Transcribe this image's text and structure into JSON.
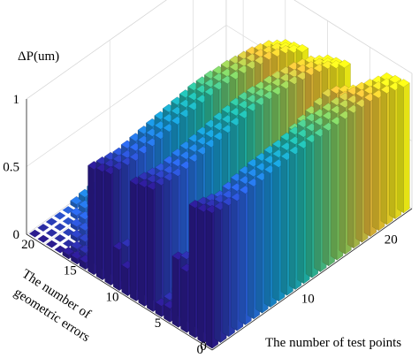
{
  "chart_data": {
    "type": "bar3d",
    "zlabel": "ΔP(um)",
    "xlabel": "The number of  test points",
    "ylabel_lines": [
      "The number of",
      "geometric errors"
    ],
    "x_range": [
      0,
      24
    ],
    "y_range": [
      0,
      22
    ],
    "z_range": [
      0,
      1
    ],
    "x_ticks": [
      "0",
      "10",
      "20"
    ],
    "x_tick_values": [
      0,
      10,
      20
    ],
    "y_ticks": [
      "0",
      "5",
      "10",
      "15",
      "20"
    ],
    "y_tick_values": [
      0,
      5,
      10,
      15,
      20
    ],
    "z_ticks": [
      "0",
      "0.5",
      "1"
    ],
    "z_tick_values": [
      0,
      0.5,
      1
    ],
    "grid": true,
    "colormap": [
      "#2b1b8f",
      "#2a5fdc",
      "#1696d1",
      "#21b9a4",
      "#84c95a",
      "#e8ba36",
      "#f9f716"
    ],
    "x_count": 24,
    "y_count": 22,
    "row_profiles": [
      {
        "y": 1,
        "values": [
          1.0,
          0.98,
          0.97,
          0.96,
          0.97,
          0.98,
          0.98,
          0.99,
          0.99,
          1.0,
          1.0,
          1.0,
          1.0,
          1.0,
          1.0,
          1.0,
          1.0,
          1.0,
          1.0,
          1.0,
          0.98,
          0.97,
          0.95,
          0.93
        ]
      },
      {
        "y": 2,
        "values": [
          0.97,
          0.96,
          0.95,
          0.94,
          0.95,
          0.96,
          0.97,
          0.97,
          0.98,
          0.98,
          0.99,
          0.99,
          1.0,
          1.0,
          1.0,
          1.0,
          1.0,
          1.0,
          0.99,
          0.99,
          0.97,
          0.96,
          0.94,
          0.92
        ]
      },
      {
        "y": 3,
        "values": [
          0.96,
          0.94,
          0.92,
          0.9,
          0.92,
          0.94,
          0.95,
          0.96,
          0.96,
          0.97,
          0.97,
          0.98,
          0.98,
          0.99,
          0.99,
          0.98,
          0.98,
          0.98,
          0.97,
          0.97,
          0.96,
          0.94,
          0.92,
          0.9
        ]
      },
      {
        "y": 4,
        "values": [
          0.45,
          0.42,
          0.4,
          0.38,
          0.4,
          0.44,
          0.5,
          0.55,
          0.58,
          0.62,
          0.65,
          0.68,
          0.72,
          0.75,
          0.8,
          0.82,
          0.85,
          0.87,
          0.88,
          0.9,
          0.86,
          0.8,
          0.72,
          0.62
        ]
      },
      {
        "y": 5,
        "values": [
          0.5,
          0.46,
          0.42,
          0.4,
          0.42,
          0.46,
          0.52,
          0.56,
          0.6,
          0.64,
          0.68,
          0.72,
          0.76,
          0.8,
          0.84,
          0.86,
          0.88,
          0.9,
          0.92,
          0.9,
          0.86,
          0.82,
          0.76,
          0.68
        ]
      },
      {
        "y": 6,
        "values": [
          0.1,
          0.1,
          0.12,
          0.14,
          0.18,
          0.22,
          0.28,
          0.34,
          0.4,
          0.46,
          0.52,
          0.56,
          0.6,
          0.64,
          0.68,
          0.72,
          0.74,
          0.76,
          0.78,
          0.78,
          0.74,
          0.66,
          0.56,
          0.42
        ]
      },
      {
        "y": 7,
        "values": [
          0.08,
          0.08,
          0.1,
          0.12,
          0.14,
          0.18,
          0.22,
          0.26,
          0.3,
          0.34,
          0.38,
          0.42,
          0.46,
          0.5,
          0.54,
          0.58,
          0.6,
          0.62,
          0.64,
          0.64,
          0.6,
          0.54,
          0.46,
          0.36
        ]
      },
      {
        "y": 8,
        "values": [
          0.9,
          0.89,
          0.88,
          0.87,
          0.88,
          0.89,
          0.9,
          0.91,
          0.92,
          0.93,
          0.94,
          0.95,
          0.96,
          0.96,
          0.96,
          0.95,
          0.95,
          0.94,
          0.93,
          0.92,
          0.9,
          0.88,
          0.84,
          0.8
        ]
      },
      {
        "y": 9,
        "values": [
          0.88,
          0.87,
          0.86,
          0.85,
          0.86,
          0.87,
          0.88,
          0.89,
          0.9,
          0.91,
          0.92,
          0.93,
          0.94,
          0.94,
          0.94,
          0.93,
          0.93,
          0.92,
          0.91,
          0.9,
          0.88,
          0.86,
          0.82,
          0.78
        ]
      },
      {
        "y": 10,
        "values": [
          0.86,
          0.85,
          0.84,
          0.83,
          0.84,
          0.85,
          0.86,
          0.87,
          0.88,
          0.89,
          0.9,
          0.91,
          0.92,
          0.92,
          0.92,
          0.91,
          0.91,
          0.9,
          0.89,
          0.88,
          0.86,
          0.84,
          0.8,
          0.76
        ]
      },
      {
        "y": 11,
        "values": [
          0.2,
          0.18,
          0.16,
          0.14,
          0.16,
          0.2,
          0.24,
          0.28,
          0.32,
          0.36,
          0.4,
          0.44,
          0.48,
          0.52,
          0.56,
          0.6,
          0.62,
          0.64,
          0.66,
          0.66,
          0.62,
          0.56,
          0.48,
          0.38
        ]
      },
      {
        "y": 12,
        "values": [
          0.3,
          0.28,
          0.26,
          0.24,
          0.26,
          0.3,
          0.34,
          0.38,
          0.42,
          0.46,
          0.5,
          0.54,
          0.58,
          0.62,
          0.66,
          0.68,
          0.7,
          0.72,
          0.74,
          0.74,
          0.7,
          0.64,
          0.56,
          0.44
        ]
      },
      {
        "y": 13,
        "values": [
          0.82,
          0.81,
          0.8,
          0.79,
          0.8,
          0.81,
          0.82,
          0.83,
          0.84,
          0.85,
          0.86,
          0.87,
          0.88,
          0.88,
          0.88,
          0.87,
          0.87,
          0.86,
          0.85,
          0.84,
          0.82,
          0.8,
          0.76,
          0.72
        ]
      },
      {
        "y": 14,
        "values": [
          0.8,
          0.79,
          0.78,
          0.77,
          0.78,
          0.79,
          0.8,
          0.81,
          0.82,
          0.83,
          0.84,
          0.85,
          0.86,
          0.86,
          0.86,
          0.85,
          0.85,
          0.84,
          0.83,
          0.82,
          0.8,
          0.78,
          0.74,
          0.7
        ]
      },
      {
        "y": 15,
        "values": [
          0.78,
          0.77,
          0.76,
          0.75,
          0.76,
          0.77,
          0.78,
          0.79,
          0.8,
          0.81,
          0.82,
          0.83,
          0.84,
          0.84,
          0.84,
          0.83,
          0.83,
          0.82,
          0.81,
          0.8,
          0.78,
          0.76,
          0.72,
          0.68
        ]
      },
      {
        "y": 16,
        "values": [
          0.05,
          0.05,
          0.06,
          0.08,
          0.1,
          0.14,
          0.18,
          0.22,
          0.26,
          0.3,
          0.34,
          0.38,
          0.4,
          0.42,
          0.44,
          0.46,
          0.46,
          0.46,
          0.44,
          0.42,
          0.36,
          0.28,
          0.2,
          0.12
        ]
      },
      {
        "y": 17,
        "values": [
          0.04,
          0.04,
          0.05,
          0.06,
          0.08,
          0.1,
          0.14,
          0.18,
          0.22,
          0.26,
          0.3,
          0.34,
          0.36,
          0.38,
          0.4,
          0.42,
          0.42,
          0.4,
          0.38,
          0.34,
          0.28,
          0.22,
          0.16,
          0.1
        ]
      },
      {
        "y": 18,
        "values": [
          0.03,
          0.03,
          0.04,
          0.05,
          0.06,
          0.08,
          0.12,
          0.16,
          0.2,
          0.24,
          0.28,
          0.32,
          0.34,
          0.36,
          0.38,
          0.38,
          0.36,
          0.34,
          0.32,
          0.28,
          0.22,
          0.16,
          0.12,
          0.08
        ]
      },
      {
        "y": 19,
        "values": [
          0.02,
          0.02,
          0.03,
          0.04,
          0.05,
          0.06,
          0.08,
          0.12,
          0.16,
          0.2,
          0.24,
          0.28,
          0.3,
          0.32,
          0.34,
          0.34,
          0.32,
          0.3,
          0.28,
          0.24,
          0.18,
          0.12,
          0.08,
          0.05
        ]
      },
      {
        "y": 20,
        "values": [
          0.02,
          0.02,
          0.02,
          0.03,
          0.04,
          0.05,
          0.06,
          0.08,
          0.1,
          0.14,
          0.18,
          0.2,
          0.22,
          0.24,
          0.24,
          0.24,
          0.22,
          0.2,
          0.18,
          0.14,
          0.1,
          0.08,
          0.05,
          0.03
        ]
      },
      {
        "y": 21,
        "values": [
          0.01,
          0.01,
          0.02,
          0.02,
          0.03,
          0.04,
          0.05,
          0.06,
          0.08,
          0.1,
          0.12,
          0.14,
          0.16,
          0.18,
          0.18,
          0.18,
          0.16,
          0.14,
          0.12,
          0.1,
          0.08,
          0.06,
          0.04,
          0.02
        ]
      },
      {
        "y": 22,
        "values": [
          0.01,
          0.01,
          0.01,
          0.02,
          0.02,
          0.03,
          0.04,
          0.05,
          0.06,
          0.08,
          0.1,
          0.12,
          0.12,
          0.14,
          0.14,
          0.14,
          0.12,
          0.1,
          0.08,
          0.06,
          0.05,
          0.04,
          0.03,
          0.02
        ]
      }
    ]
  }
}
